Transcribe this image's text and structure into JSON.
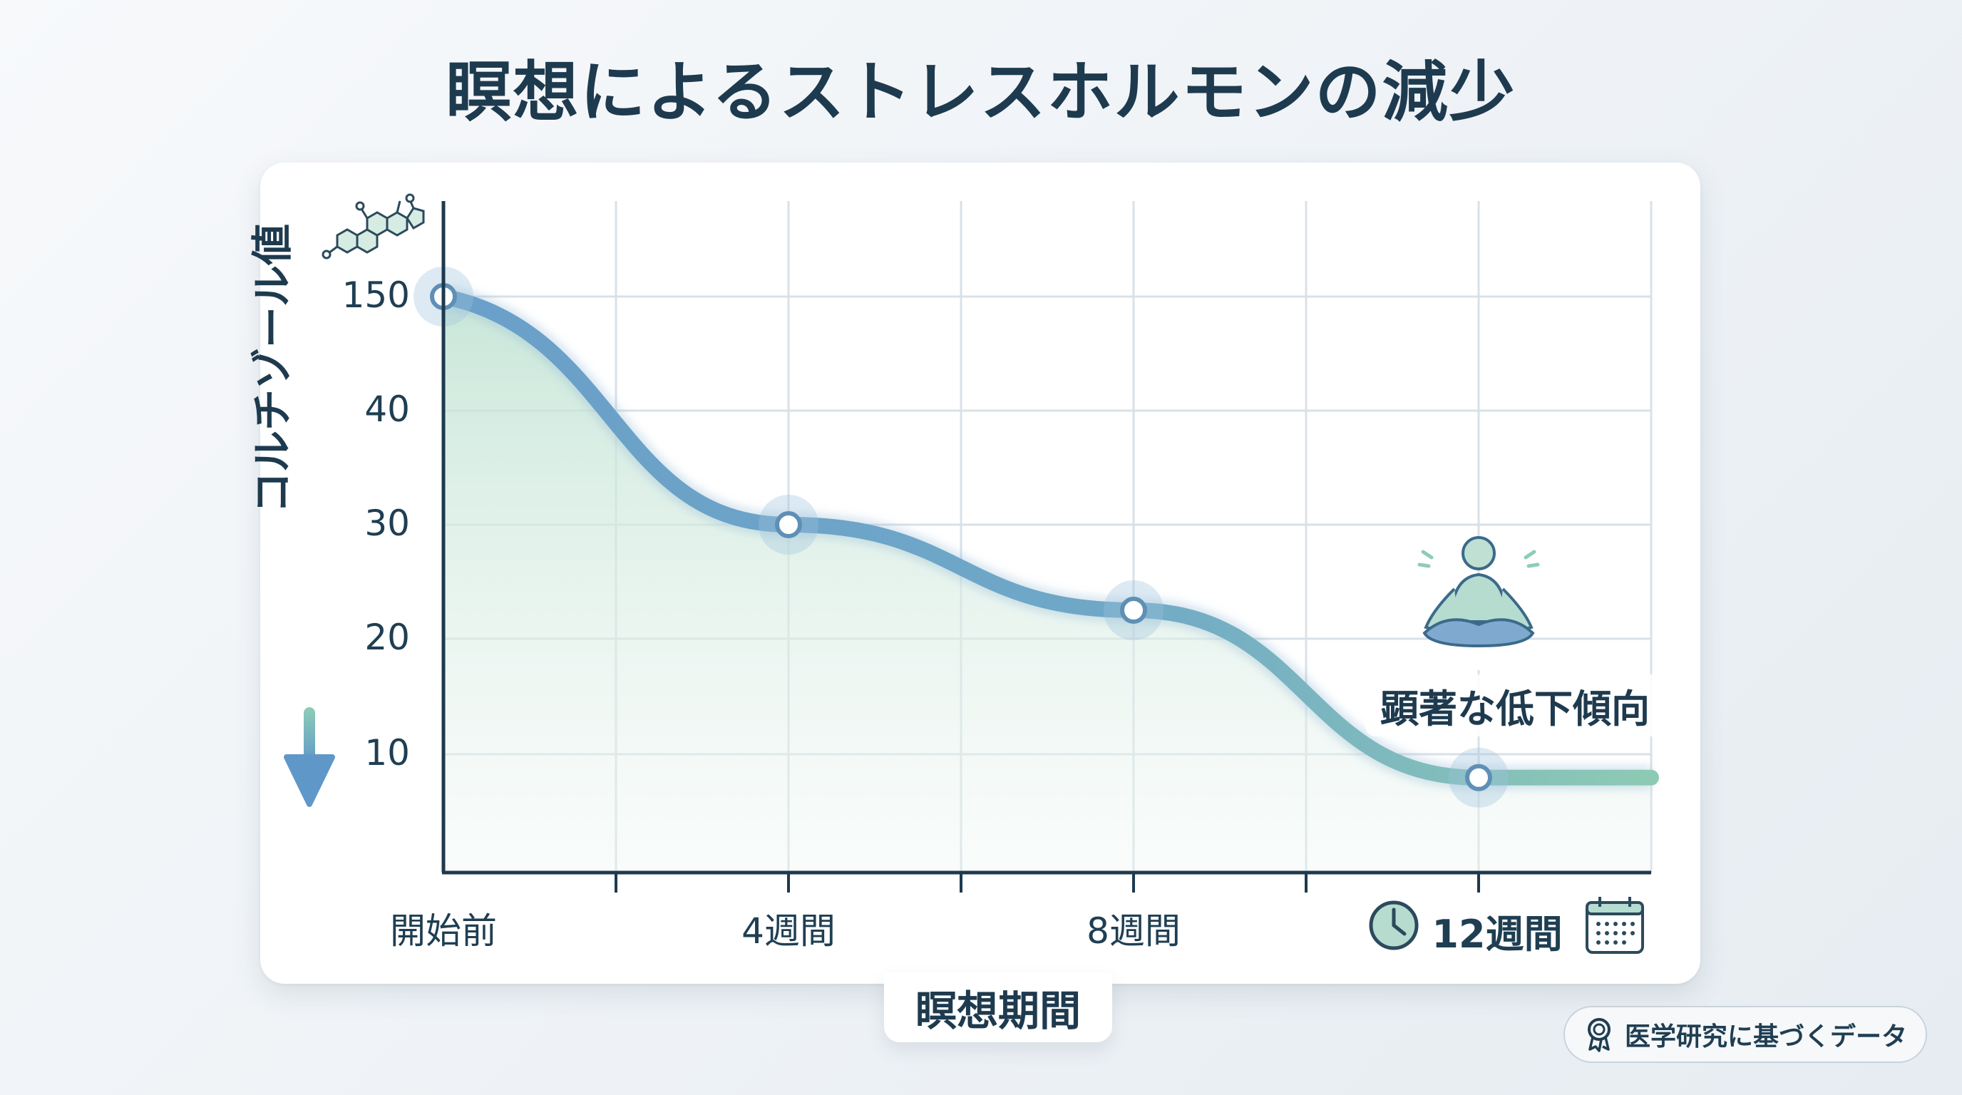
{
  "title": "瞑想によるストレスホルモンの減少",
  "annotation": "顕著な低下傾向",
  "badge": {
    "text": "医学研究に基づくデータ",
    "icon": "award-ribbon-icon"
  },
  "colors": {
    "line_start": "#6a9fc9",
    "line_end": "#8dc7b3",
    "fill": "#cfe8dc",
    "axis": "#1e3a4e",
    "grid": "#d9e1e8",
    "arrow_top": "#8ecdb5",
    "arrow_bottom": "#6a9fc9"
  },
  "chart_data": {
    "type": "line",
    "title": "瞑想によるストレスホルモンの減少",
    "xlabel": "瞑想期間",
    "ylabel": "コルチゾール値",
    "y_ticks": [
      "150",
      "40",
      "30",
      "20",
      "10"
    ],
    "x_ticks": [
      "開始前",
      "4週間",
      "8週間",
      "12週間"
    ],
    "series": [
      {
        "x": [
          "開始前",
          "4週間",
          "8週間",
          "12週間"
        ],
        "values": [
          150,
          30,
          22.5,
          8
        ]
      }
    ],
    "grid": true,
    "legend": "none"
  }
}
